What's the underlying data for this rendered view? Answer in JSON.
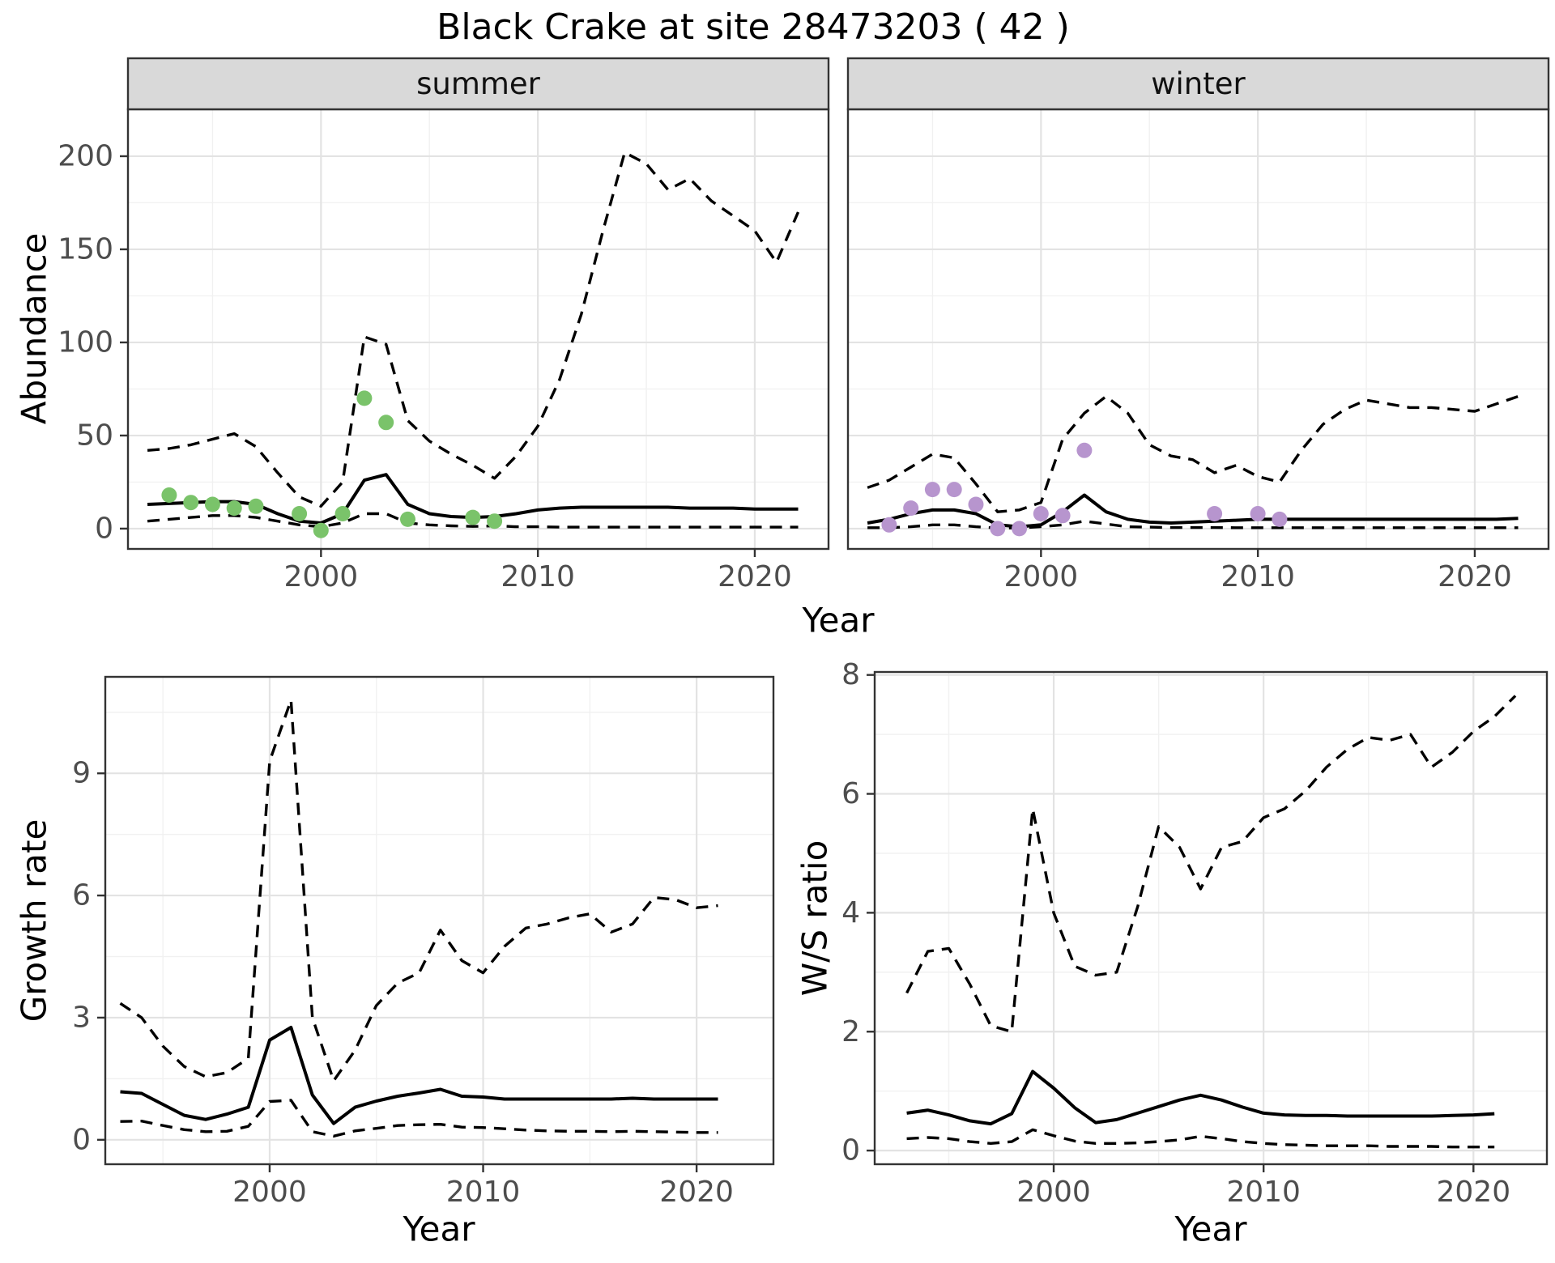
{
  "title": "Black Crake at site 28473203 ( 42 )",
  "colors": {
    "summer_points": "#7ac36a",
    "winter_points": "#b795ce",
    "line": "#000000",
    "grid_major": "#e3e3e3",
    "grid_minor": "#f1f1f1",
    "strip_bg": "#d9d9d9",
    "panel_border": "#333333",
    "tick_text": "#4d4d4d",
    "panel_bg": "#ffffff"
  },
  "chart_data": [
    {
      "id": "abundance-summer",
      "type": "line",
      "facet_label": "summer",
      "ylabel": "Abundance",
      "xlabel": "Year",
      "x_domain": [
        1991.1,
        2023.4
      ],
      "y_domain": [
        -10.9,
        225.2
      ],
      "x_ticks": [
        2000,
        2010,
        2020
      ],
      "x_minor": [
        1995,
        2005,
        2015
      ],
      "y_ticks": [
        0,
        50,
        100,
        150,
        200
      ],
      "y_minor": [
        25,
        75,
        125,
        175
      ],
      "grid": true,
      "legend": "none",
      "series": [
        {
          "name": "upper-ci",
          "style": "dashed",
          "years": [
            1992,
            1993,
            1994,
            1995,
            1996,
            1997,
            1998,
            1999,
            2000,
            2001,
            2002,
            2003,
            2004,
            2005,
            2006,
            2007,
            2008,
            2009,
            2010,
            2011,
            2012,
            2013,
            2014,
            2015,
            2016,
            2017,
            2018,
            2019,
            2020,
            2021,
            2022
          ],
          "values": [
            42,
            43,
            45,
            48,
            51,
            44,
            30,
            17,
            12,
            25,
            103,
            99,
            58,
            47,
            40,
            34,
            27,
            39,
            55,
            80,
            115,
            160,
            202,
            196,
            182,
            188,
            176,
            168,
            160,
            143,
            170
          ]
        },
        {
          "name": "median",
          "style": "solid",
          "years": [
            1992,
            1993,
            1994,
            1995,
            1996,
            1997,
            1998,
            1999,
            2000,
            2001,
            2002,
            2003,
            2004,
            2005,
            2006,
            2007,
            2008,
            2009,
            2010,
            2011,
            2012,
            2013,
            2014,
            2015,
            2016,
            2017,
            2018,
            2019,
            2020,
            2021,
            2022
          ],
          "values": [
            13,
            13.5,
            14,
            14.5,
            14.5,
            13,
            8,
            4,
            3,
            8,
            26,
            29,
            13,
            8,
            6.5,
            6,
            6.5,
            8,
            10,
            11,
            11.5,
            11.5,
            11.5,
            11.5,
            11.5,
            11,
            11,
            11,
            10.5,
            10.5,
            10.5
          ]
        },
        {
          "name": "lower-ci",
          "style": "dashed",
          "years": [
            1992,
            1993,
            1994,
            1995,
            1996,
            1997,
            1998,
            1999,
            2000,
            2001,
            2002,
            2003,
            2004,
            2005,
            2006,
            2007,
            2008,
            2009,
            2010,
            2011,
            2012,
            2013,
            2014,
            2015,
            2016,
            2017,
            2018,
            2019,
            2020,
            2021,
            2022
          ],
          "values": [
            4,
            5,
            6,
            7,
            7,
            6,
            4,
            2,
            1,
            3,
            8,
            8,
            3,
            2,
            1.5,
            1.2,
            1.5,
            1,
            1,
            0.8,
            0.8,
            0.8,
            0.8,
            0.8,
            0.8,
            0.8,
            0.8,
            0.8,
            0.8,
            0.8,
            0.8
          ]
        }
      ],
      "points": {
        "name": "summer-observations",
        "color": "#7ac36a",
        "years": [
          1993,
          1994,
          1995,
          1996,
          1997,
          1999,
          2000,
          2001,
          2002,
          2003,
          2004,
          2007,
          2008
        ],
        "values": [
          18,
          14,
          13,
          11,
          12,
          8,
          -1,
          8,
          70,
          57,
          5,
          6,
          4
        ]
      }
    },
    {
      "id": "abundance-winter",
      "type": "line",
      "facet_label": "winter",
      "ylabel": "Abundance",
      "xlabel": "Year",
      "x_domain": [
        1991.1,
        2023.4
      ],
      "y_domain": [
        -10.9,
        225.2
      ],
      "x_ticks": [
        2000,
        2010,
        2020
      ],
      "x_minor": [
        1995,
        2005,
        2015
      ],
      "y_ticks": [
        0,
        50,
        100,
        150,
        200
      ],
      "y_minor": [
        25,
        75,
        125,
        175
      ],
      "grid": true,
      "legend": "none",
      "series": [
        {
          "name": "upper-ci",
          "style": "dashed",
          "years": [
            1992,
            1993,
            1994,
            1995,
            1996,
            1997,
            1998,
            1999,
            2000,
            2001,
            2002,
            2003,
            2004,
            2005,
            2006,
            2007,
            2008,
            2009,
            2010,
            2011,
            2012,
            2013,
            2014,
            2015,
            2016,
            2017,
            2018,
            2019,
            2020,
            2021,
            2022
          ],
          "values": [
            22,
            26,
            33,
            40,
            38,
            24,
            9,
            10,
            14,
            48,
            62,
            71,
            62,
            45,
            39,
            37,
            30,
            34,
            28,
            25,
            42,
            56,
            64,
            69,
            67,
            65,
            65,
            64,
            63,
            67,
            71
          ]
        },
        {
          "name": "median",
          "style": "solid",
          "years": [
            1992,
            1993,
            1994,
            1995,
            1996,
            1997,
            1998,
            1999,
            2000,
            2001,
            2002,
            2003,
            2004,
            2005,
            2006,
            2007,
            2008,
            2009,
            2010,
            2011,
            2012,
            2013,
            2014,
            2015,
            2016,
            2017,
            2018,
            2019,
            2020,
            2021,
            2022
          ],
          "values": [
            3,
            5,
            8,
            10,
            10,
            8,
            2,
            1,
            2,
            9,
            18,
            9,
            5,
            3.5,
            3,
            3.5,
            4,
            4.5,
            5,
            5,
            5,
            5,
            5,
            5,
            5,
            5,
            5,
            5,
            5,
            5,
            5.5
          ]
        },
        {
          "name": "lower-ci",
          "style": "dashed",
          "years": [
            1992,
            1993,
            1994,
            1995,
            1996,
            1997,
            1998,
            1999,
            2000,
            2001,
            2002,
            2003,
            2004,
            2005,
            2006,
            2007,
            2008,
            2009,
            2010,
            2011,
            2012,
            2013,
            2014,
            2015,
            2016,
            2017,
            2018,
            2019,
            2020,
            2021,
            2022
          ],
          "values": [
            0.5,
            0.5,
            1,
            2,
            2,
            1,
            0.3,
            0.3,
            1,
            2,
            4,
            2.5,
            1,
            0.8,
            0.6,
            0.6,
            0.6,
            0.5,
            0.5,
            0.5,
            0.5,
            0.5,
            0.5,
            0.5,
            0.5,
            0.5,
            0.5,
            0.5,
            0.5,
            0.5,
            0.5
          ]
        }
      ],
      "points": {
        "name": "winter-observations",
        "color": "#b795ce",
        "years": [
          1993,
          1994,
          1995,
          1996,
          1997,
          1998,
          1999,
          2000,
          2001,
          2002,
          2008,
          2010,
          2011
        ],
        "values": [
          2,
          11,
          21,
          21,
          13,
          0,
          0,
          8,
          7,
          42,
          8,
          8,
          5
        ]
      }
    },
    {
      "id": "growth-rate",
      "type": "line",
      "facet_label": "",
      "ylabel": "Growth rate",
      "xlabel": "Year",
      "x_domain": [
        1992.3,
        2023.6
      ],
      "y_domain": [
        -0.6,
        11.37
      ],
      "x_ticks": [
        2000,
        2010,
        2020
      ],
      "x_minor": [
        1995,
        2005,
        2015
      ],
      "y_ticks": [
        0,
        3,
        6,
        9
      ],
      "y_minor": [
        1.5,
        4.5,
        7.5,
        10.5
      ],
      "grid": true,
      "legend": "none",
      "series": [
        {
          "name": "upper-ci",
          "style": "dashed",
          "years": [
            1993,
            1994,
            1995,
            1996,
            1997,
            1998,
            1999,
            2000,
            2001,
            2002,
            2003,
            2004,
            2005,
            2006,
            2007,
            2008,
            2009,
            2010,
            2011,
            2012,
            2013,
            2014,
            2015,
            2016,
            2017,
            2018,
            2019,
            2020,
            2021
          ],
          "values": [
            3.35,
            3.0,
            2.3,
            1.8,
            1.55,
            1.65,
            2.0,
            9.3,
            10.8,
            3.0,
            1.45,
            2.2,
            3.3,
            3.85,
            4.1,
            5.15,
            4.4,
            4.1,
            4.75,
            5.2,
            5.3,
            5.45,
            5.55,
            5.1,
            5.3,
            5.95,
            5.9,
            5.7,
            5.75
          ]
        },
        {
          "name": "median",
          "style": "solid",
          "years": [
            1993,
            1994,
            1995,
            1996,
            1997,
            1998,
            1999,
            2000,
            2001,
            2002,
            2003,
            2004,
            2005,
            2006,
            2007,
            2008,
            2009,
            2010,
            2011,
            2012,
            2013,
            2014,
            2015,
            2016,
            2017,
            2018,
            2019,
            2020,
            2021
          ],
          "values": [
            1.18,
            1.14,
            0.87,
            0.6,
            0.5,
            0.63,
            0.8,
            2.45,
            2.76,
            1.1,
            0.4,
            0.8,
            0.95,
            1.07,
            1.15,
            1.24,
            1.07,
            1.05,
            1.0,
            1.0,
            1.0,
            1.0,
            1.0,
            1.0,
            1.02,
            1.0,
            1.0,
            1.0,
            1.0
          ]
        },
        {
          "name": "lower-ci",
          "style": "dashed",
          "years": [
            1993,
            1994,
            1995,
            1996,
            1997,
            1998,
            1999,
            2000,
            2001,
            2002,
            2003,
            2004,
            2005,
            2006,
            2007,
            2008,
            2009,
            2010,
            2011,
            2012,
            2013,
            2014,
            2015,
            2016,
            2017,
            2018,
            2019,
            2020,
            2021
          ],
          "values": [
            0.45,
            0.46,
            0.35,
            0.25,
            0.2,
            0.21,
            0.33,
            0.94,
            0.97,
            0.2,
            0.09,
            0.22,
            0.28,
            0.35,
            0.37,
            0.38,
            0.31,
            0.3,
            0.27,
            0.24,
            0.22,
            0.21,
            0.21,
            0.2,
            0.21,
            0.2,
            0.19,
            0.18,
            0.18
          ]
        }
      ]
    },
    {
      "id": "ws-ratio",
      "type": "line",
      "facet_label": "",
      "ylabel": "W/S ratio",
      "xlabel": "Year",
      "x_domain": [
        1991.47,
        2023.5
      ],
      "y_domain": [
        -0.23,
        8.05
      ],
      "x_ticks": [
        2000,
        2010,
        2020
      ],
      "x_minor": [
        1995,
        2005,
        2015
      ],
      "y_ticks": [
        0,
        2,
        4,
        6,
        8
      ],
      "y_minor": [
        1,
        3,
        5,
        7
      ],
      "grid": true,
      "legend": "none",
      "series": [
        {
          "name": "upper-ci",
          "style": "dashed",
          "years": [
            1993,
            1994,
            1995,
            1996,
            1997,
            1998,
            1999,
            2000,
            2001,
            2002,
            2003,
            2004,
            2005,
            2006,
            2007,
            2008,
            2009,
            2010,
            2011,
            2012,
            2013,
            2014,
            2015,
            2016,
            2017,
            2018,
            2019,
            2020,
            2021,
            2022
          ],
          "values": [
            2.65,
            3.35,
            3.4,
            2.8,
            2.1,
            2.0,
            5.75,
            4.0,
            3.1,
            2.95,
            3.0,
            4.1,
            5.45,
            5.1,
            4.4,
            5.1,
            5.2,
            5.6,
            5.75,
            6.05,
            6.45,
            6.75,
            6.95,
            6.9,
            7.0,
            6.45,
            6.7,
            7.05,
            7.3,
            7.65
          ]
        },
        {
          "name": "median",
          "style": "solid",
          "years": [
            1993,
            1994,
            1995,
            1996,
            1997,
            1998,
            1999,
            2000,
            2001,
            2002,
            2003,
            2004,
            2005,
            2006,
            2007,
            2008,
            2009,
            2010,
            2011,
            2012,
            2013,
            2014,
            2015,
            2016,
            2017,
            2018,
            2019,
            2020,
            2021
          ],
          "values": [
            0.63,
            0.68,
            0.6,
            0.5,
            0.45,
            0.62,
            1.33,
            1.05,
            0.72,
            0.47,
            0.52,
            0.63,
            0.74,
            0.85,
            0.93,
            0.85,
            0.73,
            0.63,
            0.6,
            0.59,
            0.59,
            0.58,
            0.58,
            0.58,
            0.58,
            0.58,
            0.59,
            0.6,
            0.62
          ]
        },
        {
          "name": "lower-ci",
          "style": "dashed",
          "years": [
            1993,
            1994,
            1995,
            1996,
            1997,
            1998,
            1999,
            2000,
            2001,
            2002,
            2003,
            2004,
            2005,
            2006,
            2007,
            2008,
            2009,
            2010,
            2011,
            2012,
            2013,
            2014,
            2015,
            2016,
            2017,
            2018,
            2019,
            2020,
            2021
          ],
          "values": [
            0.2,
            0.22,
            0.2,
            0.15,
            0.12,
            0.15,
            0.35,
            0.25,
            0.16,
            0.12,
            0.12,
            0.13,
            0.15,
            0.18,
            0.24,
            0.2,
            0.15,
            0.12,
            0.1,
            0.09,
            0.08,
            0.08,
            0.08,
            0.07,
            0.07,
            0.07,
            0.06,
            0.06,
            0.06
          ]
        }
      ]
    }
  ]
}
